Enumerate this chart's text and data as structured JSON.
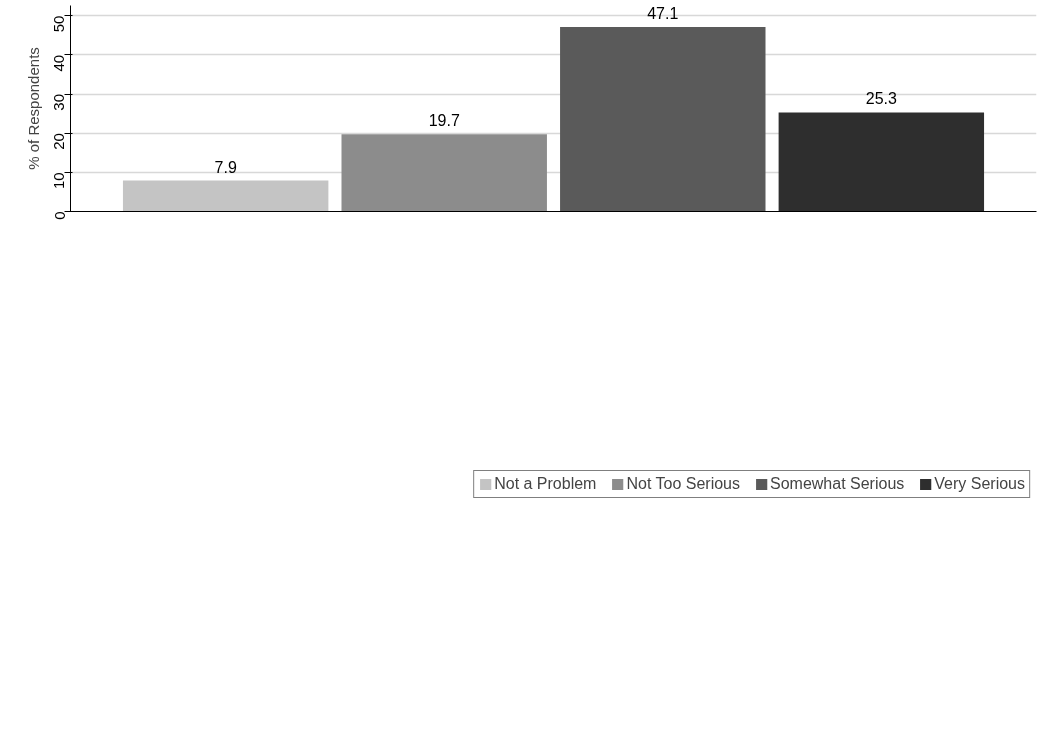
{
  "chart_data": {
    "type": "bar",
    "ylabel": "% of Respondents",
    "categories": [
      null
    ],
    "series": [
      {
        "name": "Not a Problem",
        "color": "#c4c4c4",
        "values": [
          7.9
        ]
      },
      {
        "name": "Not Too Serious",
        "color": "#8c8c8c",
        "values": [
          19.7
        ]
      },
      {
        "name": "Somewhat Serious",
        "color": "#5a5a5a",
        "values": [
          47.1
        ]
      },
      {
        "name": "Very Serious",
        "color": "#2e2e2e",
        "values": [
          25.3
        ]
      }
    ],
    "ylim": [
      0,
      52.6
    ],
    "yticks": [
      0,
      10,
      20,
      30,
      40,
      50
    ],
    "grid": "y",
    "legend": "bottom",
    "data_labels": true,
    "tick_labels": "y"
  }
}
